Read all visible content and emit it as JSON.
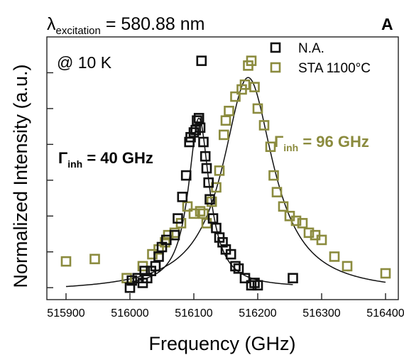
{
  "chart_data": {
    "type": "scatter",
    "title_prefix": "λ",
    "title_sub": "excitation",
    "title_rest": " = 580.88 nm",
    "panel_label": "A",
    "condition": "@ 10 K",
    "xlabel": "Frequency (GHz)",
    "ylabel": "Normalized Intensity (a.u.)",
    "xlim": [
      515870,
      516420
    ],
    "ylim": [
      0,
      1.1
    ],
    "x_ticks": [
      515900,
      516000,
      516100,
      516200,
      516300,
      516400
    ],
    "y_ticks": [
      0.05,
      0.2,
      0.35,
      0.5,
      0.65,
      0.8,
      0.95
    ],
    "grid": false,
    "legend_position": "top-right",
    "series": [
      {
        "name": "N.A.",
        "color": "#111111",
        "fit_center": 516108,
        "fit_fwhm": 40,
        "fit_peak": 0.76,
        "fit_base": 0.05,
        "fit_range": [
          516000,
          516255
        ],
        "gamma_label": "Γ",
        "gamma_sub": "inh",
        "gamma_value": " = 40 GHz",
        "points": [
          [
            516000,
            0.05
          ],
          [
            516003,
            0.08
          ],
          [
            516012,
            0.09
          ],
          [
            516020,
            0.07
          ],
          [
            516023,
            0.12
          ],
          [
            516027,
            0.09
          ],
          [
            516033,
            0.12
          ],
          [
            516040,
            0.14
          ],
          [
            516045,
            0.18
          ],
          [
            516050,
            0.22
          ],
          [
            516057,
            0.25
          ],
          [
            516070,
            0.27
          ],
          [
            516075,
            0.34
          ],
          [
            516082,
            0.43
          ],
          [
            516088,
            0.52
          ],
          [
            516093,
            0.66
          ],
          [
            516095,
            0.68
          ],
          [
            516100,
            0.7
          ],
          [
            516103,
            0.71
          ],
          [
            516105,
            0.75
          ],
          [
            516108,
            0.76
          ],
          [
            516110,
            0.72
          ],
          [
            516112,
            1.0
          ],
          [
            516115,
            0.66
          ],
          [
            516118,
            0.6
          ],
          [
            516120,
            0.55
          ],
          [
            516123,
            0.49
          ],
          [
            516125,
            0.42
          ],
          [
            516130,
            0.34
          ],
          [
            516135,
            0.3
          ],
          [
            516140,
            0.26
          ],
          [
            516145,
            0.24
          ],
          [
            516150,
            0.21
          ],
          [
            516158,
            0.19
          ],
          [
            516165,
            0.14
          ],
          [
            516170,
            0.13
          ],
          [
            516180,
            0.09
          ],
          [
            516190,
            0.06
          ],
          [
            516195,
            0.07
          ],
          [
            516200,
            0.06
          ],
          [
            516255,
            0.09
          ]
        ]
      },
      {
        "name": "STA 1100°C",
        "color": "#8b8b3e",
        "fit_center": 516185,
        "fit_fwhm": 96,
        "fit_peak": 0.93,
        "fit_base": 0.03,
        "fit_range": [
          515900,
          516400
        ],
        "gamma_label": "Γ",
        "gamma_sub": "inh",
        "gamma_value": " = 96 GHz",
        "points": [
          [
            515900,
            0.16
          ],
          [
            515945,
            0.17
          ],
          [
            515995,
            0.09
          ],
          [
            516020,
            0.14
          ],
          [
            516035,
            0.19
          ],
          [
            516045,
            0.21
          ],
          [
            516055,
            0.24
          ],
          [
            516060,
            0.27
          ],
          [
            516070,
            0.28
          ],
          [
            516080,
            0.32
          ],
          [
            516090,
            0.39
          ],
          [
            516100,
            0.36
          ],
          [
            516110,
            0.37
          ],
          [
            516115,
            0.36
          ],
          [
            516120,
            0.32
          ],
          [
            516128,
            0.41
          ],
          [
            516135,
            0.47
          ],
          [
            516140,
            0.54
          ],
          [
            516147,
            0.69
          ],
          [
            516150,
            0.75
          ],
          [
            516155,
            0.79
          ],
          [
            516165,
            0.85
          ],
          [
            516175,
            0.88
          ],
          [
            516180,
            0.9
          ],
          [
            516185,
            0.98
          ],
          [
            516190,
            1.0
          ],
          [
            516195,
            0.89
          ],
          [
            516200,
            0.8
          ],
          [
            516210,
            0.73
          ],
          [
            516220,
            0.64
          ],
          [
            516225,
            0.52
          ],
          [
            516230,
            0.45
          ],
          [
            516240,
            0.39
          ],
          [
            516250,
            0.35
          ],
          [
            516260,
            0.33
          ],
          [
            516270,
            0.32
          ],
          [
            516280,
            0.28
          ],
          [
            516290,
            0.27
          ],
          [
            516300,
            0.25
          ],
          [
            516320,
            0.18
          ],
          [
            516340,
            0.14
          ],
          [
            516400,
            0.11
          ]
        ]
      }
    ]
  }
}
